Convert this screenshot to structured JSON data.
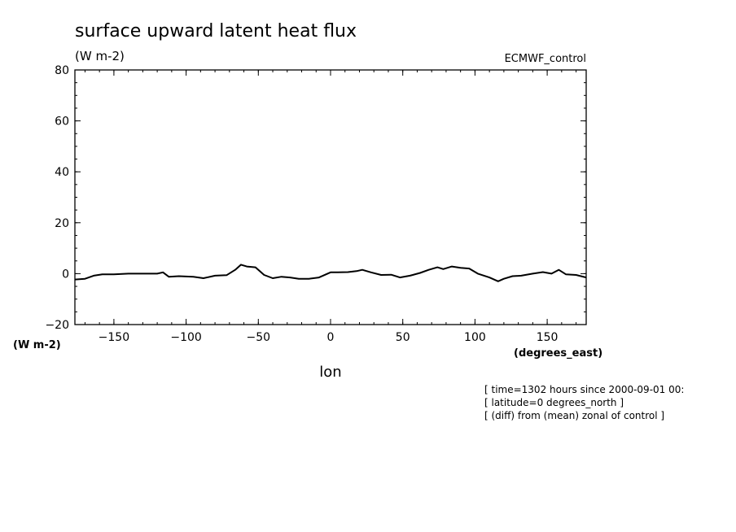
{
  "chart_data": {
    "type": "line",
    "title": "surface upward latent heat flux",
    "subtitle_units": "(W m-2)",
    "source_label": "ECMWF_control",
    "xlabel": "lon",
    "x_units": "(degrees_east)",
    "y_units": "(W m-2)",
    "xlim": [
      -177,
      177
    ],
    "ylim": [
      -20,
      80
    ],
    "x_ticks": [
      -150,
      -100,
      -50,
      0,
      50,
      100,
      150
    ],
    "x_tick_labels": [
      "-150",
      "-100",
      "-50",
      "0",
      "50",
      "100",
      "150"
    ],
    "y_ticks": [
      -20,
      0,
      20,
      40,
      60,
      80
    ],
    "y_tick_labels": [
      "-20",
      "0",
      "20",
      "40",
      "60",
      "80"
    ],
    "grid": false,
    "notes": [
      "[ time=1302 hours since 2000-09-01 00:",
      "[ latitude=0 degrees_north ]",
      "[ (diff) from (mean) zonal of control ]"
    ],
    "series": [
      {
        "x": [
          -177,
          -170,
          -164,
          -158,
          -150,
          -140,
          -130,
          -120,
          -116,
          -112,
          -105,
          -95,
          -88,
          -80,
          -72,
          -66,
          -62,
          -58,
          -52,
          -46,
          -40,
          -34,
          -28,
          -22,
          -15,
          -8,
          0,
          5,
          12,
          18,
          22,
          28,
          35,
          42,
          48,
          55,
          62,
          68,
          74,
          78,
          84,
          90,
          96,
          102,
          110,
          116,
          120,
          126,
          132,
          140,
          147,
          153,
          158,
          163,
          170,
          177
        ],
        "y": [
          -2.3,
          -2.0,
          -0.8,
          -0.3,
          -0.3,
          0.0,
          0.0,
          0.0,
          0.5,
          -1.2,
          -1.0,
          -1.2,
          -1.8,
          -0.8,
          -0.6,
          1.5,
          3.5,
          2.8,
          2.5,
          -0.5,
          -1.8,
          -1.2,
          -1.5,
          -2.0,
          -2.0,
          -1.5,
          0.5,
          0.5,
          0.6,
          1.0,
          1.5,
          0.5,
          -0.5,
          -0.4,
          -1.5,
          -0.8,
          0.3,
          1.5,
          2.5,
          1.8,
          2.8,
          2.3,
          2.0,
          0.0,
          -1.5,
          -3.0,
          -2.0,
          -1.0,
          -0.8,
          0.0,
          0.6,
          0.0,
          1.5,
          -0.3,
          -0.5,
          -1.5
        ]
      }
    ]
  }
}
